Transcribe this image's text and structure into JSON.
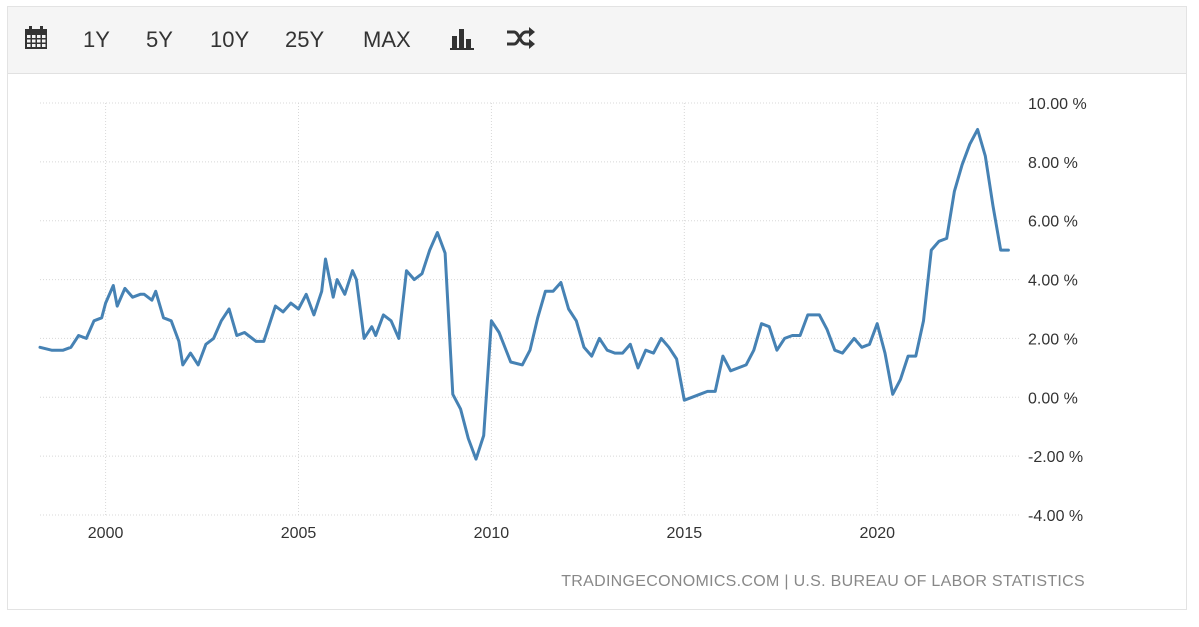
{
  "toolbar": {
    "calendar_icon": "calendar-icon",
    "buttons": [
      "1Y",
      "5Y",
      "10Y",
      "25Y",
      "MAX"
    ],
    "bar_icon": "bar-chart-icon",
    "shuffle_icon": "shuffle-icon"
  },
  "source": "TRADINGECONOMICS.COM | U.S. BUREAU OF LABOR STATISTICS",
  "colors": {
    "line": "#4682b4",
    "grid": "#d8d8d8",
    "toolbar_bg": "#f5f5f5"
  },
  "chart_data": {
    "type": "line",
    "title": "",
    "xlabel": "",
    "ylabel": "",
    "xlim": [
      1998.3,
      2023.7
    ],
    "ylim": [
      -4,
      10
    ],
    "x_ticks": [
      2000,
      2005,
      2010,
      2015,
      2020
    ],
    "x_tick_labels": [
      "2000",
      "2005",
      "2010",
      "2015",
      "2020"
    ],
    "y_ticks": [
      10,
      8,
      6,
      4,
      2,
      0,
      -2,
      -4
    ],
    "y_tick_labels": [
      "10.00 %",
      "8.00 %",
      "6.00 %",
      "4.00 %",
      "2.00 %",
      "0.00 %",
      "-2.00 %",
      "-4.00 %"
    ],
    "grid": true,
    "series": [
      {
        "x": [
          1998.3,
          1998.6,
          1998.9,
          1999.1,
          1999.3,
          1999.5,
          1999.7,
          1999.9,
          2000.0,
          2000.2,
          2000.3,
          2000.5,
          2000.7,
          2000.9,
          2001.0,
          2001.2,
          2001.3,
          2001.5,
          2001.7,
          2001.9,
          2002.0,
          2002.2,
          2002.4,
          2002.6,
          2002.8,
          2003.0,
          2003.2,
          2003.4,
          2003.6,
          2003.9,
          2004.1,
          2004.4,
          2004.6,
          2004.8,
          2005.0,
          2005.2,
          2005.4,
          2005.6,
          2005.7,
          2005.9,
          2006.0,
          2006.2,
          2006.4,
          2006.5,
          2006.7,
          2006.9,
          2007.0,
          2007.2,
          2007.4,
          2007.6,
          2007.8,
          2008.0,
          2008.2,
          2008.4,
          2008.6,
          2008.8,
          2009.0,
          2009.2,
          2009.4,
          2009.6,
          2009.8,
          2010.0,
          2010.2,
          2010.5,
          2010.8,
          2011.0,
          2011.2,
          2011.4,
          2011.6,
          2011.8,
          2012.0,
          2012.2,
          2012.4,
          2012.6,
          2012.8,
          2013.0,
          2013.2,
          2013.4,
          2013.6,
          2013.8,
          2014.0,
          2014.2,
          2014.4,
          2014.6,
          2014.8,
          2015.0,
          2015.2,
          2015.4,
          2015.6,
          2015.8,
          2016.0,
          2016.2,
          2016.4,
          2016.6,
          2016.8,
          2017.0,
          2017.2,
          2017.4,
          2017.6,
          2017.8,
          2018.0,
          2018.2,
          2018.5,
          2018.7,
          2018.9,
          2019.1,
          2019.4,
          2019.6,
          2019.8,
          2020.0,
          2020.2,
          2020.4,
          2020.6,
          2020.8,
          2021.0,
          2021.2,
          2021.4,
          2021.6,
          2021.8,
          2022.0,
          2022.2,
          2022.4,
          2022.6,
          2022.8,
          2023.0,
          2023.2,
          2023.4
        ],
        "values": [
          1.7,
          1.6,
          1.6,
          1.7,
          2.1,
          2.0,
          2.6,
          2.7,
          3.2,
          3.8,
          3.1,
          3.7,
          3.4,
          3.5,
          3.5,
          3.3,
          3.6,
          2.7,
          2.6,
          1.9,
          1.1,
          1.5,
          1.1,
          1.8,
          2.0,
          2.6,
          3.0,
          2.1,
          2.2,
          1.9,
          1.9,
          3.1,
          2.9,
          3.2,
          3.0,
          3.5,
          2.8,
          3.6,
          4.7,
          3.4,
          4.0,
          3.5,
          4.3,
          4.0,
          2.0,
          2.4,
          2.1,
          2.8,
          2.6,
          2.0,
          4.3,
          4.0,
          4.2,
          5.0,
          5.6,
          4.9,
          0.1,
          -0.4,
          -1.4,
          -2.1,
          -1.3,
          2.6,
          2.2,
          1.2,
          1.1,
          1.6,
          2.7,
          3.6,
          3.6,
          3.9,
          3.0,
          2.6,
          1.7,
          1.4,
          2.0,
          1.6,
          1.5,
          1.5,
          1.8,
          1.0,
          1.6,
          1.5,
          2.0,
          1.7,
          1.3,
          -0.1,
          0.0,
          0.1,
          0.2,
          0.2,
          1.4,
          0.9,
          1.0,
          1.1,
          1.6,
          2.5,
          2.4,
          1.6,
          2.0,
          2.1,
          2.1,
          2.8,
          2.8,
          2.3,
          1.6,
          1.5,
          2.0,
          1.7,
          1.8,
          2.5,
          1.5,
          0.1,
          0.6,
          1.4,
          1.4,
          2.6,
          5.0,
          5.3,
          5.4,
          7.0,
          7.9,
          8.6,
          9.1,
          8.2,
          6.5,
          5.0,
          5.0
        ],
        "name": ""
      }
    ]
  }
}
